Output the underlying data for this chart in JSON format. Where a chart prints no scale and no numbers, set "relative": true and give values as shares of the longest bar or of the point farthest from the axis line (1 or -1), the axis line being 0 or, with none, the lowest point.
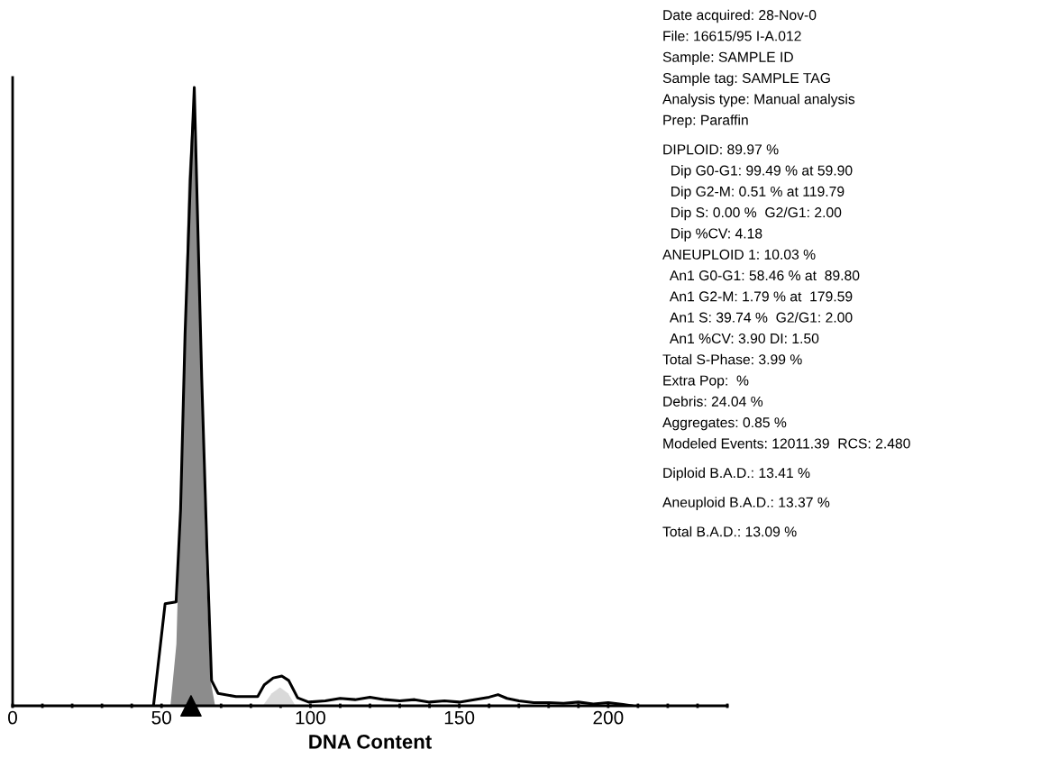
{
  "chart_data": {
    "type": "line",
    "relative": true,
    "xlabel": "DNA Content",
    "xlim": [
      0,
      240
    ],
    "xticks": [
      0,
      {
        "value": 10,
        "label": null
      },
      {
        "value": 20,
        "label": null
      },
      {
        "value": 30,
        "label": null
      },
      {
        "value": 40,
        "label": null
      },
      50,
      {
        "value": 60,
        "label": null
      },
      {
        "value": 70,
        "label": null
      },
      {
        "value": 80,
        "label": null
      },
      {
        "value": 90,
        "label": null
      },
      100,
      {
        "value": 110,
        "label": null
      },
      {
        "value": 120,
        "label": null
      },
      {
        "value": 130,
        "label": null
      },
      {
        "value": 140,
        "label": null
      },
      150,
      {
        "value": 160,
        "label": null
      },
      {
        "value": 170,
        "label": null
      },
      {
        "value": 180,
        "label": null
      },
      {
        "value": 190,
        "label": null
      },
      200,
      {
        "value": 210,
        "label": null
      },
      {
        "value": 220,
        "label": null
      },
      {
        "value": 230,
        "label": null
      },
      {
        "value": 240,
        "label": null
      }
    ],
    "grid": false,
    "legend": false,
    "series": [
      {
        "type": "area",
        "color": "#8c8c8c",
        "x": [
          53,
          55,
          57,
          59,
          60.5,
          62,
          63.5,
          65,
          66.5,
          68
        ],
        "values": [
          0,
          0.1,
          0.45,
          0.85,
          0.97,
          0.8,
          0.5,
          0.22,
          0.04,
          0
        ]
      },
      {
        "type": "area",
        "color": "#d9d9d9",
        "x": [
          84,
          87,
          89.8,
          92.5,
          95
        ],
        "values": [
          0,
          0.02,
          0.03,
          0.02,
          0
        ]
      },
      {
        "color": "#000000",
        "x": [
          47.3,
          51.2,
          54.9,
          56.4,
          57.9,
          59.7,
          61.0,
          62.0,
          63.5,
          65.3,
          66.8,
          69,
          75,
          82.3,
          84.5,
          87.5,
          90.4,
          92.7,
          95.7,
          99.4,
          105,
          110,
          115,
          120,
          125,
          130,
          135,
          140,
          145,
          150,
          155,
          160,
          163,
          166,
          170,
          175,
          180,
          185,
          190,
          195,
          200,
          205,
          208
        ],
        "values": [
          0,
          0.165,
          0.168,
          0.317,
          0.6,
          0.85,
          1.0,
          0.81,
          0.53,
          0.246,
          0.041,
          0.02,
          0.015,
          0.015,
          0.034,
          0.045,
          0.048,
          0.041,
          0.013,
          0.006,
          0.008,
          0.012,
          0.01,
          0.014,
          0.01,
          0.008,
          0.01,
          0.006,
          0.008,
          0.006,
          0.01,
          0.014,
          0.018,
          0.012,
          0.008,
          0.005,
          0.005,
          0.004,
          0.006,
          0.003,
          0.005,
          0.002,
          0
        ]
      },
      {
        "type": "scatter",
        "color": "#000000",
        "marker": "triangle",
        "x": [
          59.9
        ],
        "values": [
          0
        ]
      }
    ],
    "annotations": [
      "Date acquired: 28-Nov-0",
      "File: 16615/95 I-A.012",
      "Sample: SAMPLE ID",
      "Sample tag: SAMPLE TAG",
      "Analysis type: Manual analysis",
      "Prep: Paraffin",
      "DIPLOID: 89.97 %",
      "  Dip G0-G1: 99.49 % at 59.90",
      "  Dip G2-M: 0.51 % at 119.79",
      "  Dip S: 0.00 %  G2/G1: 2.00",
      "  Dip %CV: 4.18",
      "ANEUPLOID 1: 10.03 %",
      "  An1 G0-G1: 58.46 % at  89.80",
      "  An1 G2-M: 1.79 % at  179.59",
      "  An1 S: 39.74 %  G2/G1: 2.00",
      "  An1 %CV: 3.90 DI: 1.50",
      "Total S-Phase: 3.99 %",
      "Extra Pop:  %",
      "Debris: 24.04 %",
      "Aggregates: 0.85 %",
      "Modeled Events: 12011.39  RCS: 2.480",
      "Diploid B.A.D.: 13.41 %",
      "Aneuploid B.A.D.: 13.37 %",
      "Total B.A.D.: 13.09 %"
    ]
  }
}
